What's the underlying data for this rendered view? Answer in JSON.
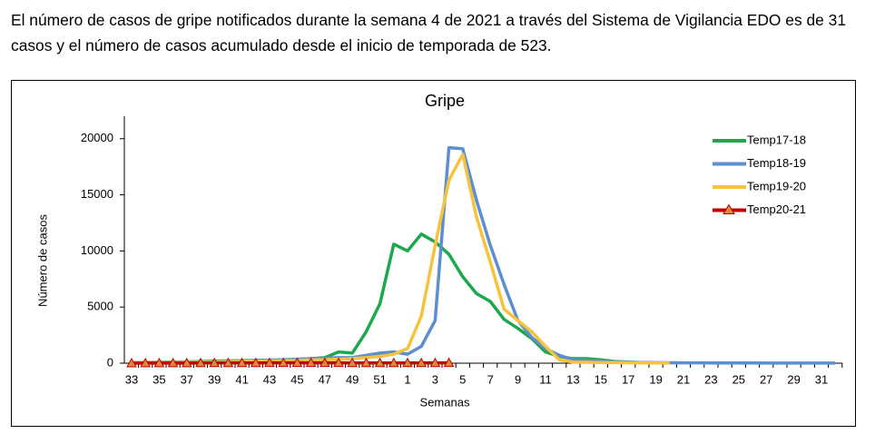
{
  "paragraph": "El número de casos de gripe notificados durante la semana 4 de 2021 a través del Sistema de Vigilancia EDO es de 31 casos y el número de casos acumulado desde el inicio de temporada de 523.",
  "chart_data": {
    "type": "line",
    "title": "Gripe",
    "x_label": "Semanas",
    "y_label": "Número de casos",
    "categories": [
      33,
      null,
      35,
      null,
      37,
      null,
      39,
      null,
      41,
      null,
      43,
      null,
      45,
      null,
      47,
      null,
      49,
      null,
      51,
      null,
      1,
      null,
      3,
      null,
      5,
      null,
      7,
      null,
      9,
      null,
      11,
      null,
      13,
      null,
      15,
      null,
      17,
      null,
      19,
      null,
      21,
      null,
      23,
      null,
      25,
      null,
      27,
      null,
      29,
      null,
      31,
      null
    ],
    "ylim": [
      0,
      22000
    ],
    "yticks": [
      0,
      5000,
      10000,
      15000,
      20000
    ],
    "legend": "upper right",
    "series": [
      {
        "name": "Temp17-18",
        "color": "#1ea84d",
        "values": [
          50,
          60,
          80,
          100,
          120,
          150,
          180,
          200,
          220,
          250,
          270,
          300,
          330,
          400,
          500,
          1000,
          900,
          2800,
          5300,
          10600,
          10000,
          11500,
          10800,
          9700,
          7700,
          6200,
          5500,
          3900,
          3100,
          2200,
          1000,
          600,
          400,
          400,
          300,
          150,
          100,
          50,
          30,
          null,
          null,
          null,
          null,
          null,
          null,
          null,
          null,
          null,
          null,
          null,
          null,
          null
        ]
      },
      {
        "name": "Temp18-19",
        "color": "#5b8fd0",
        "values": [
          50,
          60,
          70,
          80,
          100,
          120,
          150,
          180,
          200,
          220,
          250,
          300,
          350,
          400,
          450,
          500,
          500,
          700,
          900,
          1000,
          800,
          1500,
          3800,
          19200,
          19100,
          14500,
          10500,
          7000,
          3800,
          2300,
          1300,
          700,
          300,
          250,
          200,
          100,
          80,
          60,
          50,
          40,
          30,
          30,
          20,
          20,
          20,
          20,
          10,
          10,
          10,
          10,
          10,
          10
        ]
      },
      {
        "name": "Temp19-20",
        "color": "#f7c33c",
        "values": [
          30,
          40,
          50,
          60,
          70,
          80,
          100,
          120,
          150,
          180,
          200,
          220,
          250,
          280,
          300,
          350,
          400,
          500,
          600,
          800,
          1300,
          4200,
          10500,
          16300,
          18600,
          13000,
          9000,
          4800,
          3800,
          2800,
          1500,
          300,
          100,
          80,
          60,
          50,
          40,
          30,
          20,
          10,
          null,
          null,
          null,
          null,
          null,
          null,
          null,
          null,
          null,
          null,
          null,
          null
        ]
      },
      {
        "name": "Temp20-21",
        "color": "#c00000",
        "marker_color": "#e0873a",
        "values": [
          5,
          8,
          10,
          12,
          15,
          18,
          20,
          22,
          25,
          25,
          28,
          30,
          30,
          32,
          30,
          28,
          25,
          22,
          20,
          18,
          24,
          20,
          25,
          31,
          null,
          null,
          null,
          null,
          null,
          null,
          null,
          null,
          null,
          null,
          null,
          null,
          null,
          null,
          null,
          null,
          null,
          null,
          null,
          null,
          null,
          null,
          null,
          null,
          null,
          null,
          null,
          null
        ]
      }
    ]
  }
}
